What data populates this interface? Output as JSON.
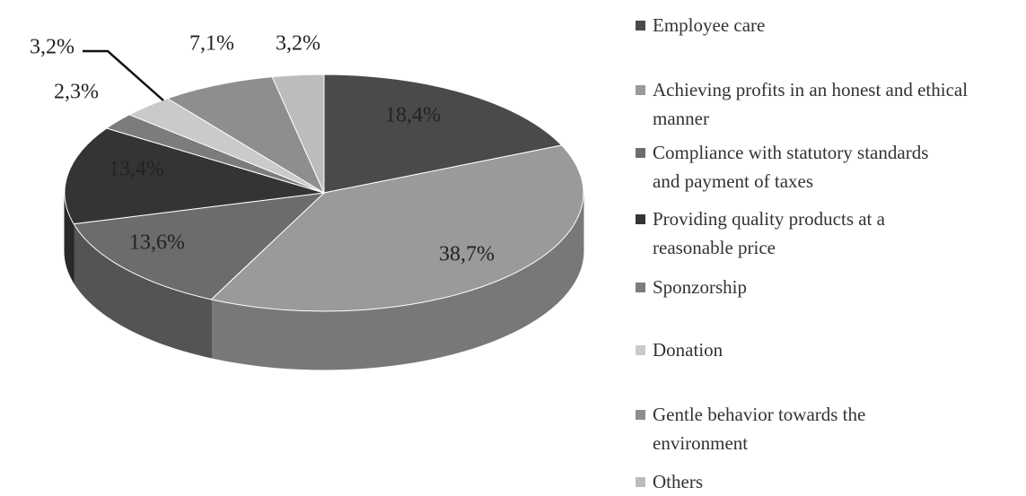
{
  "chart_data": {
    "type": "pie",
    "categories": [
      "Employee care",
      "Achieving profits in an honest and ethical manner",
      "Compliance with statutory standards and payment of taxes",
      "Providing quality products at a reasonable price",
      "Sponzorship",
      "Donation",
      "Gentle behavior towards the environment",
      "Others"
    ],
    "values": [
      18.4,
      38.7,
      13.6,
      13.4,
      2.3,
      3.2,
      7.1,
      3.2
    ],
    "value_labels": [
      "18,4%",
      "38,7%",
      "13,6%",
      "13,4%",
      "2,3%",
      "3,2%",
      "7,1%",
      "3,2%"
    ],
    "colors": [
      "#4a4a4a",
      "#9a9a9a",
      "#6c6c6c",
      "#343434",
      "#7c7c7c",
      "#cacaca",
      "#8e8e8e",
      "#bcbcbc"
    ],
    "legend": "right"
  }
}
